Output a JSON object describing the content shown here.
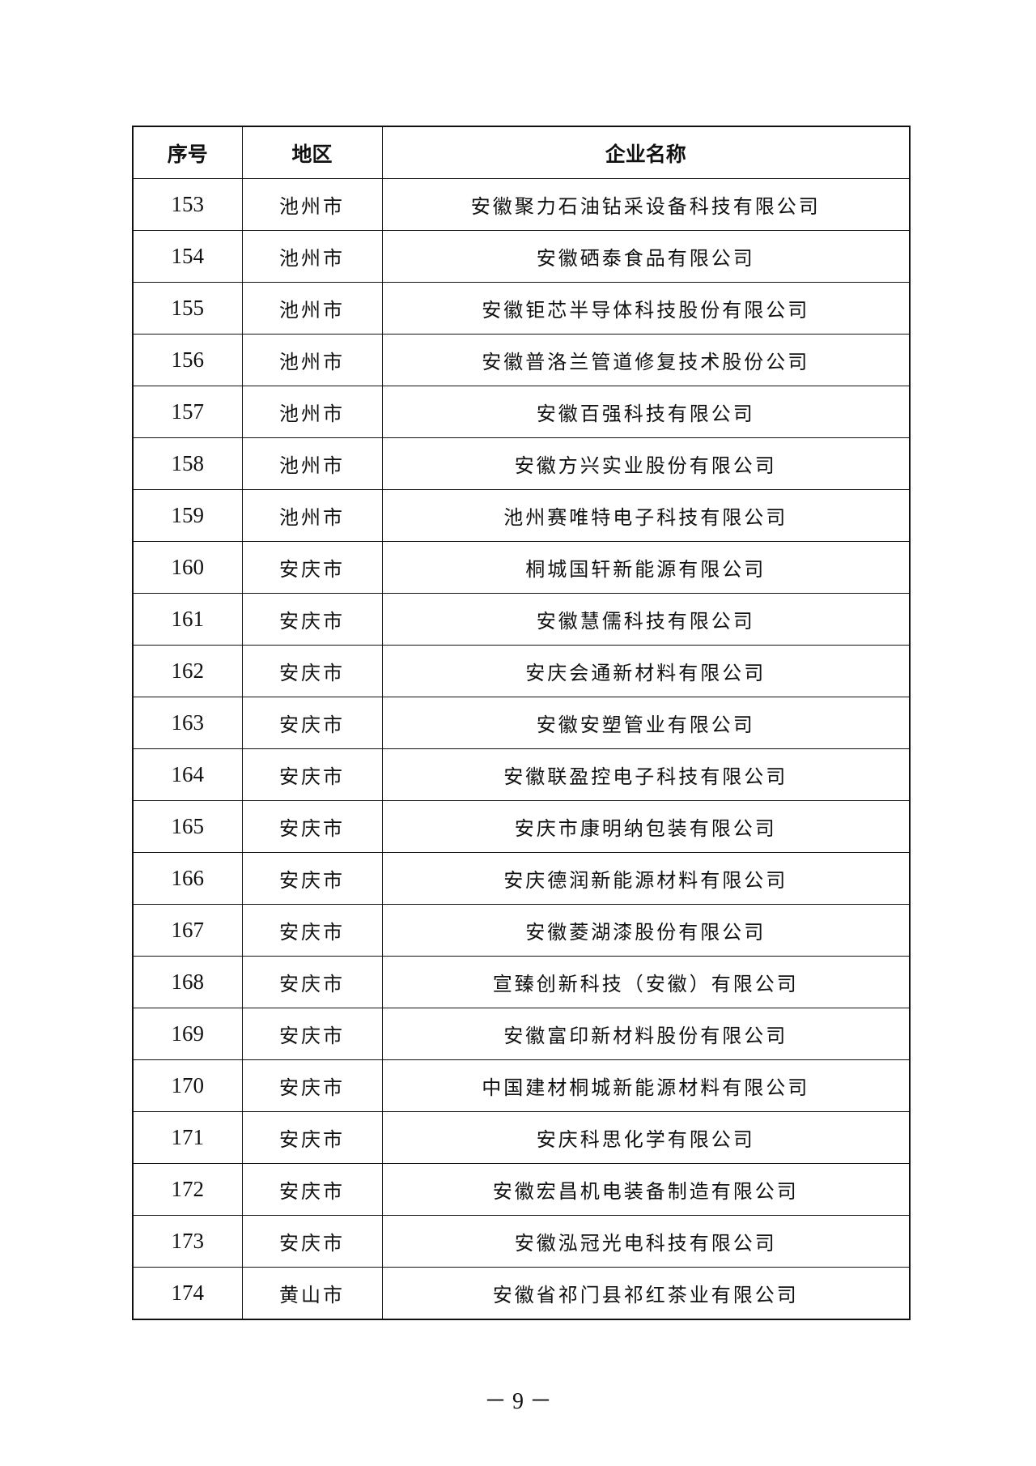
{
  "table": {
    "headers": [
      "序号",
      "地区",
      "企业名称"
    ],
    "rows": [
      [
        "153",
        "池州市",
        "安徽聚力石油钻采设备科技有限公司"
      ],
      [
        "154",
        "池州市",
        "安徽硒泰食品有限公司"
      ],
      [
        "155",
        "池州市",
        "安徽钜芯半导体科技股份有限公司"
      ],
      [
        "156",
        "池州市",
        "安徽普洛兰管道修复技术股份公司"
      ],
      [
        "157",
        "池州市",
        "安徽百强科技有限公司"
      ],
      [
        "158",
        "池州市",
        "安徽方兴实业股份有限公司"
      ],
      [
        "159",
        "池州市",
        "池州赛唯特电子科技有限公司"
      ],
      [
        "160",
        "安庆市",
        "桐城国轩新能源有限公司"
      ],
      [
        "161",
        "安庆市",
        "安徽慧儒科技有限公司"
      ],
      [
        "162",
        "安庆市",
        "安庆会通新材料有限公司"
      ],
      [
        "163",
        "安庆市",
        "安徽安塑管业有限公司"
      ],
      [
        "164",
        "安庆市",
        "安徽联盈控电子科技有限公司"
      ],
      [
        "165",
        "安庆市",
        "安庆市康明纳包装有限公司"
      ],
      [
        "166",
        "安庆市",
        "安庆德润新能源材料有限公司"
      ],
      [
        "167",
        "安庆市",
        "安徽菱湖漆股份有限公司"
      ],
      [
        "168",
        "安庆市",
        "宣臻创新科技（安徽）有限公司"
      ],
      [
        "169",
        "安庆市",
        "安徽富印新材料股份有限公司"
      ],
      [
        "170",
        "安庆市",
        "中国建材桐城新能源材料有限公司"
      ],
      [
        "171",
        "安庆市",
        "安庆科思化学有限公司"
      ],
      [
        "172",
        "安庆市",
        "安徽宏昌机电装备制造有限公司"
      ],
      [
        "173",
        "安庆市",
        "安徽泓冠光电科技有限公司"
      ],
      [
        "174",
        "黄山市",
        "安徽省祁门县祁红茶业有限公司"
      ]
    ]
  },
  "page_number": "－ 9 －"
}
